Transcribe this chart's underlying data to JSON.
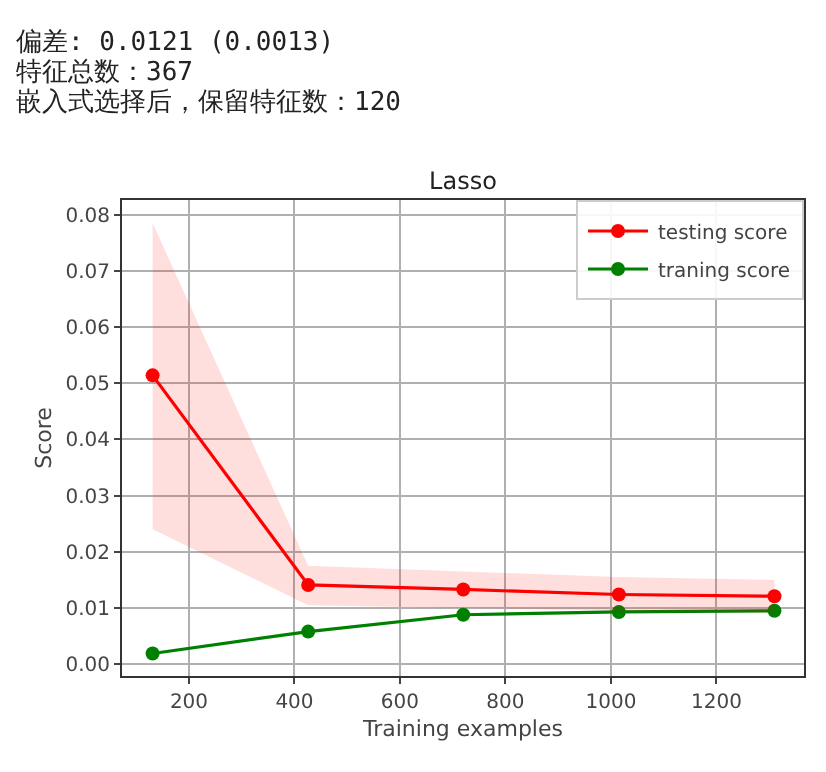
{
  "chart_data": {
    "type": "line",
    "title": "Lasso",
    "xlabel": "Training examples",
    "ylabel": "Score",
    "annotations": [
      "偏差: 0.0121 (0.0013)",
      "特征总数：367",
      "嵌入式选择后，保留特征数：120"
    ],
    "x": [
      131,
      426,
      720,
      1015,
      1310
    ],
    "series": [
      {
        "name": "traning score",
        "color": "#008000",
        "values": [
          0.0019,
          0.0058,
          0.0088,
          0.0093,
          0.0095
        ]
      },
      {
        "name": "testing score",
        "color": "#ff0000",
        "values": [
          0.0514,
          0.0141,
          0.0133,
          0.0124,
          0.0121
        ],
        "lower": [
          0.024,
          0.0105,
          0.01,
          0.0095,
          0.0092
        ],
        "upper": [
          0.0785,
          0.0175,
          0.0165,
          0.0155,
          0.015
        ]
      }
    ],
    "xlim": [
      73,
      1366
    ],
    "xticks": [
      200,
      400,
      600,
      800,
      1000,
      1200
    ],
    "ylim": [
      -0.0021,
      0.0826
    ],
    "yticks": [
      {
        "value": 0,
        "label": "0.00"
      },
      {
        "value": 0.01,
        "label": "0.01"
      },
      {
        "value": 0.02,
        "label": "0.02"
      },
      {
        "value": 0.03,
        "label": "0.03"
      },
      {
        "value": 0.04,
        "label": "0.04"
      },
      {
        "value": 0.05,
        "label": "0.05"
      },
      {
        "value": 0.06,
        "label": "0.06"
      },
      {
        "value": 0.07,
        "label": "0.07"
      },
      {
        "value": 0.08,
        "label": "0.08"
      }
    ],
    "grid": true,
    "legend": "top right",
    "marker": "circle",
    "line_style": "solid"
  }
}
